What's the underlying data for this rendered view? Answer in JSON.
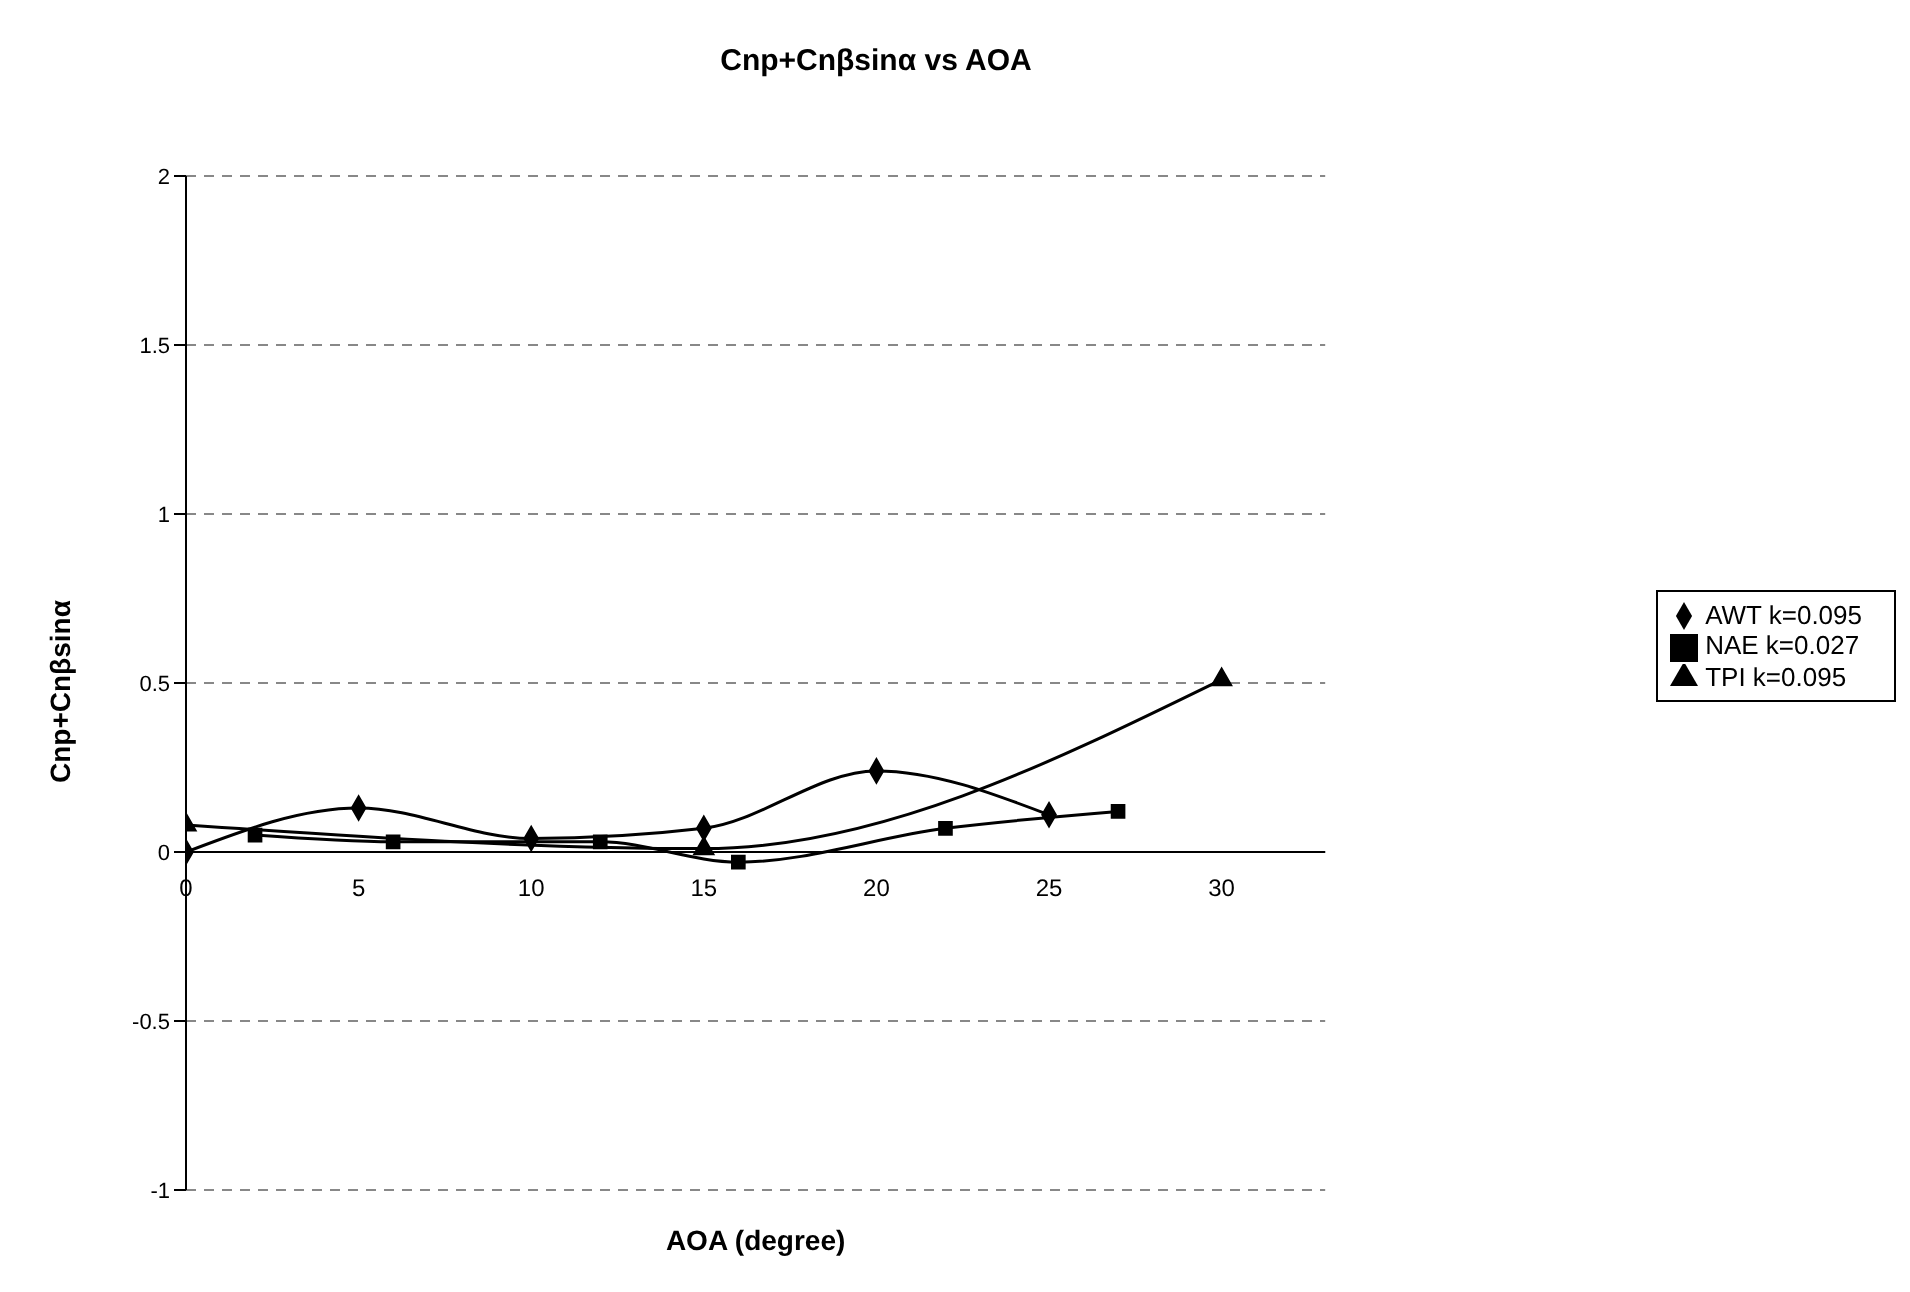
{
  "chart_data": {
    "type": "line",
    "title": "Cnp+Cnβsinα vs AOA",
    "xlabel": "AOA (degree)",
    "ylabel": "Cnp+Cnβsinα",
    "xlim": [
      0,
      33
    ],
    "xticks": [
      0,
      5,
      10,
      15,
      20,
      25,
      30
    ],
    "ylim": [
      -1,
      2
    ],
    "yticks": [
      -1,
      -0.5,
      0,
      0.5,
      1,
      1.5,
      2
    ],
    "grid": "y",
    "legend": "right",
    "series": [
      {
        "name": "AWT k=0.095",
        "color": "#000000",
        "marker": "diamond",
        "x": [
          0,
          5,
          10,
          15,
          20,
          25
        ],
        "values": [
          0,
          0.13,
          0.04,
          0.07,
          0.24,
          0.11
        ]
      },
      {
        "name": "NAE k=0.027",
        "color": "#000000",
        "marker": "square",
        "x": [
          2,
          6,
          12,
          16,
          22,
          27
        ],
        "values": [
          0.05,
          0.03,
          0.03,
          -0.03,
          0.07,
          0.12
        ]
      },
      {
        "name": "TPI k=0.095",
        "color": "#000000",
        "marker": "triangle",
        "x": [
          0,
          15,
          30
        ],
        "values": [
          0.08,
          0.01,
          0.51
        ]
      }
    ]
  }
}
